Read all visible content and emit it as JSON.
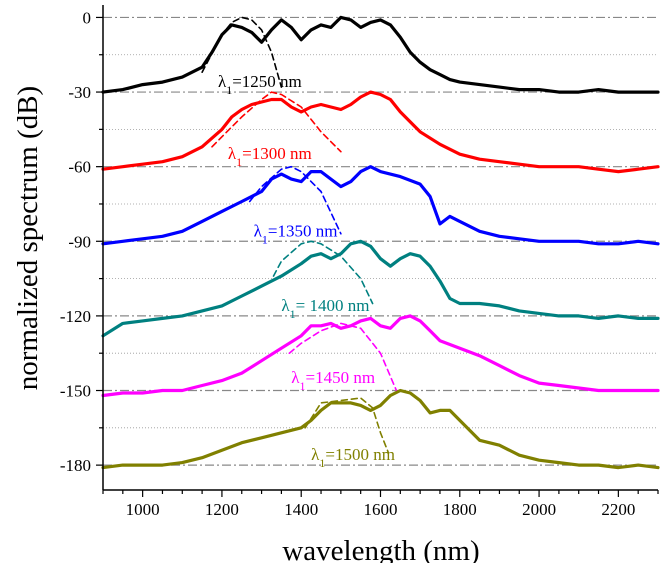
{
  "chart_data": {
    "type": "line",
    "title": "",
    "xlabel": "wavelength (nm)",
    "ylabel": "normalized spectrum (dB)",
    "xlim": [
      900,
      2300
    ],
    "ylim": [
      -190,
      5
    ],
    "x_ticks": [
      1000,
      1200,
      1400,
      1600,
      1800,
      2000,
      2200
    ],
    "y_ticks": [
      0,
      -30,
      -60,
      -90,
      -120,
      -150,
      -180
    ],
    "grid": "dash-dot at major y ticks, dotted at minor y ticks",
    "legend": "none (inline annotations)",
    "series": [
      {
        "color": "#000000",
        "style": "solid",
        "x": [
          900,
          950,
          1000,
          1050,
          1100,
          1150,
          1175,
          1200,
          1225,
          1250,
          1275,
          1300,
          1325,
          1350,
          1375,
          1400,
          1425,
          1450,
          1475,
          1500,
          1525,
          1550,
          1575,
          1600,
          1625,
          1650,
          1675,
          1700,
          1725,
          1750,
          1775,
          1800,
          1850,
          1900,
          1950,
          2000,
          2050,
          2100,
          2150,
          2200,
          2250,
          2300
        ],
        "y": [
          -30,
          -29,
          -27,
          -26,
          -24,
          -20,
          -14,
          -7,
          -3,
          -4,
          -6,
          -10,
          -5,
          -1,
          -4,
          -9,
          -5,
          -3,
          -4,
          0,
          -1,
          -4,
          -2,
          -1,
          -3,
          -8,
          -14,
          -18,
          -21,
          -23,
          -25,
          -26,
          -27,
          -28,
          -29,
          -29,
          -30,
          -30,
          -29,
          -30,
          -30,
          -30
        ]
      },
      {
        "color": "#000000",
        "style": "dashed",
        "x": [
          1150,
          1200,
          1225,
          1250,
          1275,
          1300,
          1325,
          1350
        ],
        "y": [
          -22,
          -7,
          -2,
          0,
          -1,
          -5,
          -14,
          -28
        ]
      },
      {
        "color": "#ff0000",
        "style": "solid",
        "x": [
          900,
          950,
          1000,
          1050,
          1100,
          1150,
          1200,
          1225,
          1250,
          1275,
          1300,
          1325,
          1350,
          1375,
          1400,
          1425,
          1450,
          1475,
          1500,
          1525,
          1550,
          1575,
          1600,
          1625,
          1650,
          1700,
          1750,
          1800,
          1850,
          1900,
          1950,
          2000,
          2050,
          2100,
          2150,
          2200,
          2250,
          2300
        ],
        "y": [
          -61,
          -60,
          -59,
          -58,
          -56,
          -52,
          -45,
          -40,
          -37,
          -35,
          -34,
          -33,
          -33,
          -36,
          -38,
          -36,
          -35,
          -36,
          -37,
          -35,
          -32,
          -30,
          -31,
          -33,
          -38,
          -46,
          -51,
          -55,
          -57,
          -58,
          -59,
          -60,
          -60,
          -60,
          -61,
          -62,
          -61,
          -60
        ]
      },
      {
        "color": "#ff0000",
        "style": "dashed",
        "x": [
          1175,
          1200,
          1250,
          1300,
          1325,
          1350,
          1400,
          1450,
          1500
        ],
        "y": [
          -52,
          -48,
          -40,
          -33,
          -30,
          -31,
          -36,
          -46,
          -54
        ]
      },
      {
        "color": "#0000ff",
        "style": "solid",
        "x": [
          900,
          950,
          1000,
          1050,
          1100,
          1150,
          1200,
          1250,
          1300,
          1325,
          1350,
          1375,
          1400,
          1425,
          1450,
          1475,
          1500,
          1525,
          1550,
          1575,
          1600,
          1650,
          1700,
          1725,
          1750,
          1775,
          1800,
          1850,
          1900,
          1950,
          2000,
          2050,
          2100,
          2150,
          2200,
          2250,
          2300
        ],
        "y": [
          -91,
          -90,
          -89,
          -88,
          -86,
          -82,
          -78,
          -74,
          -70,
          -65,
          -63,
          -65,
          -66,
          -62,
          -62,
          -65,
          -68,
          -66,
          -62,
          -60,
          -62,
          -64,
          -67,
          -72,
          -83,
          -80,
          -82,
          -86,
          -88,
          -89,
          -90,
          -90,
          -90,
          -91,
          -91,
          -90,
          -91
        ]
      },
      {
        "color": "#0000ff",
        "style": "dashed",
        "x": [
          1270,
          1300,
          1350,
          1375,
          1400,
          1450,
          1500
        ],
        "y": [
          -74,
          -68,
          -61,
          -60,
          -62,
          -70,
          -87
        ]
      },
      {
        "color": "#008080",
        "style": "solid",
        "x": [
          900,
          950,
          1000,
          1050,
          1100,
          1150,
          1200,
          1250,
          1300,
          1350,
          1400,
          1425,
          1450,
          1475,
          1500,
          1525,
          1550,
          1575,
          1600,
          1625,
          1650,
          1675,
          1700,
          1725,
          1750,
          1775,
          1800,
          1850,
          1900,
          1950,
          2000,
          2050,
          2100,
          2150,
          2200,
          2250,
          2300
        ],
        "y": [
          -128,
          -123,
          -122,
          -121,
          -120,
          -118,
          -116,
          -112,
          -108,
          -104,
          -99,
          -96,
          -95,
          -97,
          -95,
          -91,
          -90,
          -92,
          -97,
          -100,
          -97,
          -95,
          -96,
          -100,
          -106,
          -113,
          -115,
          -115,
          -116,
          -118,
          -119,
          -120,
          -120,
          -121,
          -120,
          -121,
          -121
        ]
      },
      {
        "color": "#008080",
        "style": "dashed",
        "x": [
          1330,
          1350,
          1400,
          1425,
          1450,
          1500,
          1550,
          1580
        ],
        "y": [
          -104,
          -98,
          -91,
          -90,
          -91,
          -96,
          -105,
          -115
        ]
      },
      {
        "color": "#ff00ff",
        "style": "solid",
        "x": [
          900,
          950,
          1000,
          1050,
          1100,
          1150,
          1200,
          1250,
          1300,
          1350,
          1400,
          1425,
          1450,
          1475,
          1500,
          1525,
          1550,
          1575,
          1600,
          1625,
          1650,
          1675,
          1700,
          1725,
          1750,
          1800,
          1850,
          1900,
          1950,
          2000,
          2050,
          2100,
          2150,
          2200,
          2250,
          2300
        ],
        "y": [
          -152,
          -151,
          -151,
          -150,
          -150,
          -148,
          -146,
          -143,
          -138,
          -133,
          -128,
          -124,
          -124,
          -123,
          -125,
          -124,
          -122,
          -121,
          -124,
          -125,
          -121,
          -120,
          -122,
          -126,
          -130,
          -133,
          -136,
          -140,
          -144,
          -147,
          -148,
          -149,
          -150,
          -150,
          -150,
          -150
        ]
      },
      {
        "color": "#ff00ff",
        "style": "dashed",
        "x": [
          1370,
          1400,
          1450,
          1500,
          1550,
          1600,
          1640
        ],
        "y": [
          -135,
          -131,
          -126,
          -123,
          -125,
          -135,
          -150
        ]
      },
      {
        "color": "#808000",
        "style": "solid",
        "x": [
          900,
          950,
          1000,
          1050,
          1100,
          1150,
          1200,
          1250,
          1300,
          1350,
          1400,
          1425,
          1450,
          1475,
          1500,
          1525,
          1550,
          1575,
          1600,
          1625,
          1650,
          1675,
          1700,
          1725,
          1750,
          1775,
          1800,
          1850,
          1900,
          1950,
          2000,
          2050,
          2100,
          2150,
          2200,
          2250,
          2300
        ],
        "y": [
          -181,
          -180,
          -180,
          -180,
          -179,
          -177,
          -174,
          -171,
          -169,
          -167,
          -165,
          -162,
          -158,
          -155,
          -155,
          -155,
          -156,
          -158,
          -156,
          -152,
          -150,
          -151,
          -154,
          -159,
          -158,
          -158,
          -162,
          -170,
          -172,
          -176,
          -178,
          -179,
          -180,
          -180,
          -181,
          -180,
          -181
        ]
      },
      {
        "color": "#808000",
        "style": "dashed",
        "x": [
          1410,
          1450,
          1500,
          1550,
          1580,
          1600,
          1620
        ],
        "y": [
          -165,
          -155,
          -154,
          -153,
          -157,
          -167,
          -175
        ]
      }
    ],
    "annotations": [
      {
        "prefix": "λ",
        "sub": "1",
        "suffix": "=1250 nm",
        "color": "#000000",
        "x": 1190,
        "y": -28
      },
      {
        "prefix": "λ",
        "sub": "1",
        "suffix": "=1300 nm",
        "color": "#ff0000",
        "x": 1215,
        "y": -57
      },
      {
        "prefix": "λ",
        "sub": "1",
        "suffix": "=1350 nm",
        "color": "#0000ff",
        "x": 1280,
        "y": -88
      },
      {
        "prefix": "λ",
        "sub": "1",
        "suffix": "= 1400 nm",
        "color": "#008080",
        "x": 1350,
        "y": -118
      },
      {
        "prefix": "λ",
        "sub": "1",
        "suffix": "=1450 nm",
        "color": "#ff00ff",
        "x": 1375,
        "y": -147
      },
      {
        "prefix": "λ",
        "sub": "1",
        "suffix": "=1500 nm",
        "color": "#808000",
        "x": 1425,
        "y": -178
      }
    ]
  }
}
